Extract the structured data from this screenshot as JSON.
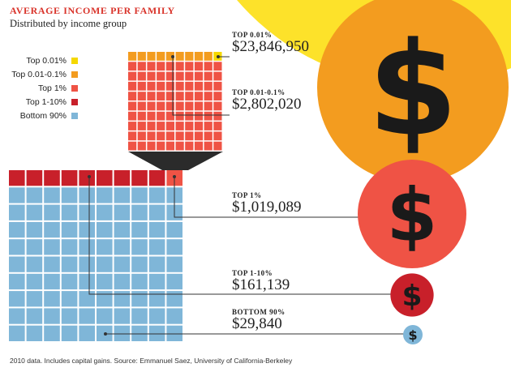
{
  "title": "AVERAGE INCOME PER FAMILY",
  "subtitle": "Distributed by income group",
  "source": "2010 data. Includes capital gains. Source: Emmanuel Saez, University of California-Berkeley",
  "colors": {
    "top_0_01": "#f5d800",
    "top_0_01_0_1": "#f39c1f",
    "top_1": "#ef5345",
    "top_1_10": "#c8202a",
    "bottom_90": "#7fb6d8",
    "sun_yellow": "#fde22a",
    "connector_gray": "#333333",
    "dollar_sign": "#1a1a1a"
  },
  "legend": [
    {
      "label": "Top 0.01%",
      "color": "#f5d800"
    },
    {
      "label": "Top 0.01-0.1%",
      "color": "#f39c1f"
    },
    {
      "label": "Top 1%",
      "color": "#ef5345"
    },
    {
      "label": "Top 1-10%",
      "color": "#c8202a"
    },
    {
      "label": "Bottom 90%",
      "color": "#7fb6d8"
    }
  ],
  "chart_data": {
    "type": "bar",
    "title": "AVERAGE INCOME PER FAMILY",
    "subtitle": "Distributed by income group",
    "categories": [
      "Top 0.01%",
      "Top 0.01-0.1%",
      "Top 1%",
      "Top 1-10%",
      "Bottom 90%"
    ],
    "values": [
      23846950,
      2802020,
      1019089,
      161139,
      29840
    ],
    "groups": [
      {
        "label": "TOP 0.01%",
        "value": 23846950,
        "value_text": "$23,846,950"
      },
      {
        "label": "TOP 0.01-0.1%",
        "value": 2802020,
        "value_text": "$2,802,020"
      },
      {
        "label": "TOP 1%",
        "value": 1019089,
        "value_text": "$1,019,089"
      },
      {
        "label": "TOP 1-10%",
        "value": 161139,
        "value_text": "$161,139"
      },
      {
        "label": "BOTTOM 90%",
        "value": 29840,
        "value_text": "$29,840"
      }
    ],
    "grid_small": {
      "cols": 10,
      "rows": 10,
      "top_0_01_cells": 1,
      "top_0_01_0_1_cells": 9,
      "top_1_cells": 90
    },
    "grid_large": {
      "cols": 10,
      "rows": 10,
      "top_1_cells": 1,
      "top_1_10_cells": 9,
      "bottom_90_cells": 90
    },
    "icon": "dollar-sign"
  }
}
